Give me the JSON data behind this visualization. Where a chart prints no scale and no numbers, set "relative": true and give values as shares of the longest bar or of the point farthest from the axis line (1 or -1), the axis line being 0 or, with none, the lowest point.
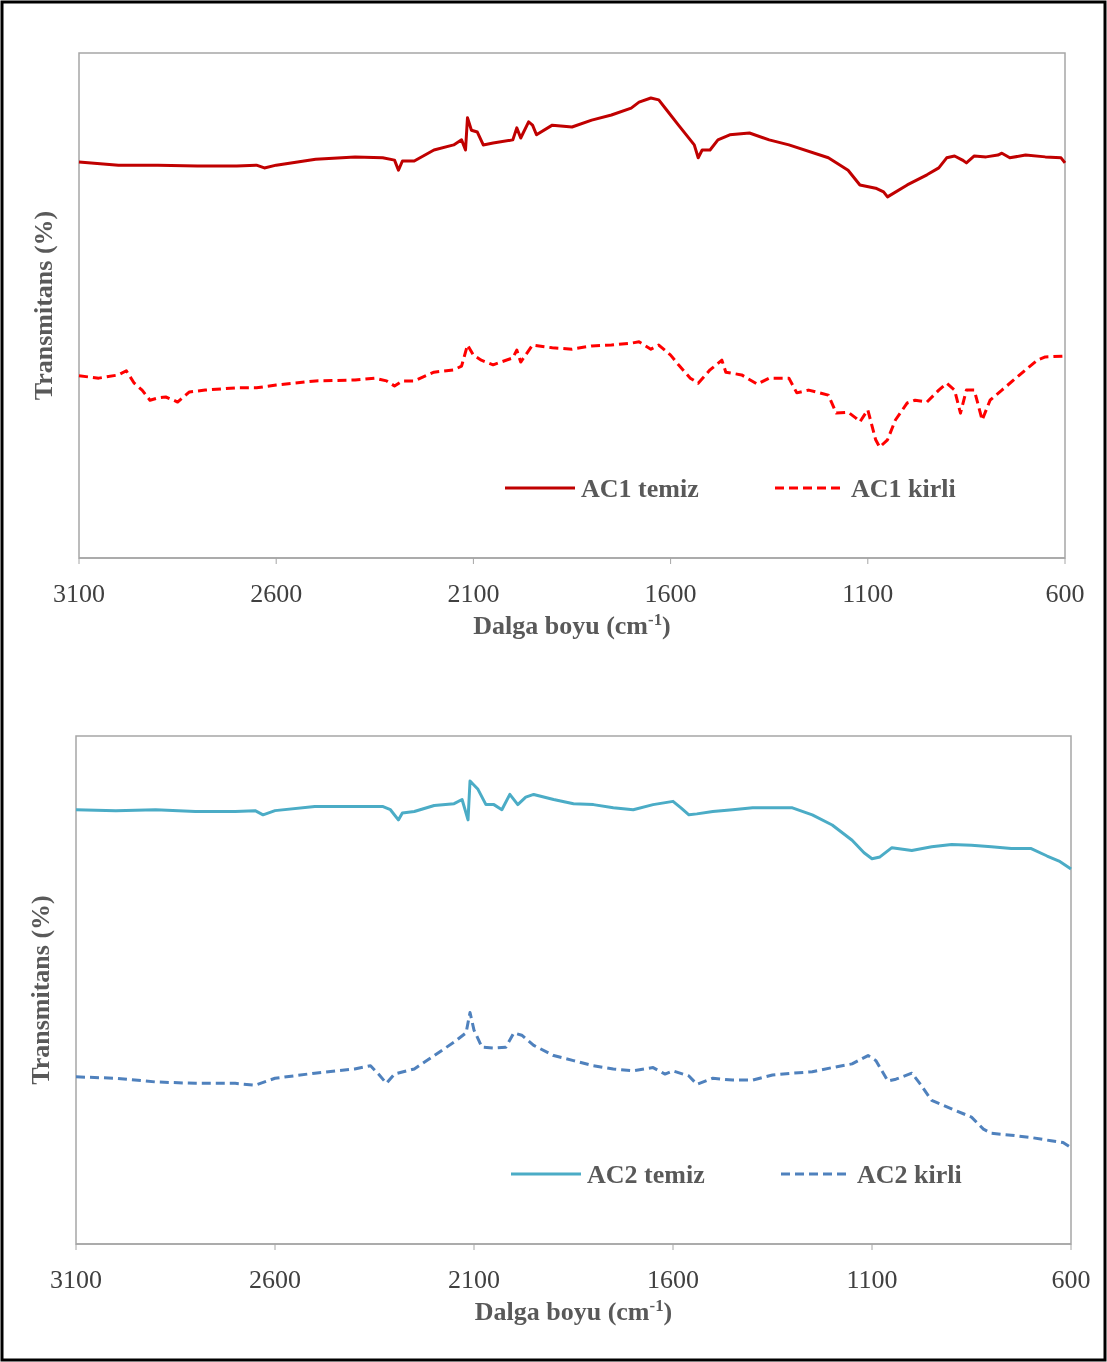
{
  "chart_data": [
    {
      "type": "line",
      "relative": true,
      "xlabel": "Dalga boyu (cm$^{-1}$)",
      "ylabel": "Transmitans (%)",
      "xlim": [
        3100,
        600
      ],
      "xticks": [
        3100,
        2600,
        2100,
        1600,
        1100,
        600
      ],
      "legend": "bottom right",
      "grid": false,
      "series": [
        {
          "name": "AC1 temiz",
          "color": "#c00000",
          "line_style": "solid",
          "x": [
            3100,
            3000,
            2900,
            2800,
            2700,
            2650,
            2630,
            2600,
            2500,
            2400,
            2330,
            2300,
            2290,
            2280,
            2250,
            2200,
            2150,
            2130,
            2120,
            2115,
            2105,
            2090,
            2075,
            2050,
            2000,
            1990,
            1980,
            1960,
            1950,
            1940,
            1900,
            1850,
            1800,
            1750,
            1700,
            1680,
            1650,
            1630,
            1610,
            1580,
            1540,
            1530,
            1520,
            1500,
            1480,
            1450,
            1400,
            1350,
            1300,
            1200,
            1150,
            1120,
            1080,
            1060,
            1050,
            1000,
            950,
            920,
            900,
            880,
            860,
            850,
            830,
            800,
            770,
            760,
            740,
            700,
            650,
            610,
            600
          ],
          "values": [
            0.861,
            0.854,
            0.854,
            0.852,
            0.852,
            0.854,
            0.848,
            0.854,
            0.867,
            0.872,
            0.87,
            0.865,
            0.843,
            0.863,
            0.863,
            0.887,
            0.898,
            0.909,
            0.887,
            0.957,
            0.93,
            0.926,
            0.898,
            0.902,
            0.909,
            0.935,
            0.913,
            0.948,
            0.941,
            0.92,
            0.941,
            0.937,
            0.952,
            0.963,
            0.978,
            0.991,
            1.0,
            0.996,
            0.974,
            0.941,
            0.898,
            0.87,
            0.887,
            0.887,
            0.909,
            0.92,
            0.924,
            0.909,
            0.898,
            0.87,
            0.843,
            0.811,
            0.804,
            0.796,
            0.785,
            0.811,
            0.833,
            0.848,
            0.87,
            0.874,
            0.865,
            0.859,
            0.874,
            0.872,
            0.876,
            0.88,
            0.87,
            0.876,
            0.872,
            0.87,
            0.859
          ]
        },
        {
          "name": "AC1 kirli",
          "color": "#ff0000",
          "line_style": "dashed",
          "x": [
            3100,
            3050,
            3000,
            2980,
            2960,
            2940,
            2920,
            2900,
            2880,
            2860,
            2850,
            2820,
            2780,
            2700,
            2650,
            2600,
            2500,
            2400,
            2350,
            2320,
            2300,
            2280,
            2250,
            2200,
            2150,
            2130,
            2115,
            2100,
            2080,
            2050,
            2000,
            1990,
            1980,
            1950,
            1900,
            1850,
            1800,
            1750,
            1700,
            1680,
            1650,
            1630,
            1600,
            1580,
            1550,
            1530,
            1500,
            1470,
            1460,
            1420,
            1380,
            1350,
            1300,
            1280,
            1250,
            1200,
            1180,
            1150,
            1130,
            1120,
            1100,
            1080,
            1070,
            1050,
            1030,
            1000,
            980,
            950,
            920,
            900,
            880,
            865,
            850,
            830,
            810,
            790,
            760,
            730,
            700,
            670,
            650,
            600
          ],
          "values": [
            0.396,
            0.391,
            0.398,
            0.407,
            0.38,
            0.365,
            0.343,
            0.348,
            0.35,
            0.343,
            0.339,
            0.361,
            0.365,
            0.37,
            0.37,
            0.376,
            0.385,
            0.387,
            0.391,
            0.385,
            0.374,
            0.385,
            0.385,
            0.404,
            0.409,
            0.417,
            0.463,
            0.441,
            0.43,
            0.42,
            0.435,
            0.452,
            0.426,
            0.463,
            0.457,
            0.454,
            0.461,
            0.463,
            0.467,
            0.47,
            0.454,
            0.463,
            0.441,
            0.42,
            0.391,
            0.38,
            0.409,
            0.43,
            0.404,
            0.398,
            0.378,
            0.391,
            0.391,
            0.359,
            0.365,
            0.354,
            0.315,
            0.317,
            0.304,
            0.296,
            0.322,
            0.257,
            0.241,
            0.257,
            0.3,
            0.337,
            0.343,
            0.339,
            0.365,
            0.38,
            0.365,
            0.315,
            0.365,
            0.365,
            0.3,
            0.343,
            0.365,
            0.387,
            0.409,
            0.43,
            0.437,
            0.439
          ]
        }
      ]
    },
    {
      "type": "line",
      "relative": true,
      "xlabel": "Dalga boyu (cm$^{-1}$)",
      "ylabel": "Transmitans (%)",
      "xlim": [
        3100,
        600
      ],
      "xticks": [
        3100,
        2600,
        2100,
        1600,
        1100,
        600
      ],
      "legend": "bottom right",
      "grid": false,
      "series": [
        {
          "name": "AC2 temiz",
          "color": "#4bacc6",
          "line_style": "solid",
          "x": [
            3100,
            3000,
            2900,
            2800,
            2700,
            2650,
            2630,
            2600,
            2500,
            2400,
            2330,
            2310,
            2290,
            2280,
            2250,
            2200,
            2150,
            2130,
            2115,
            2110,
            2090,
            2070,
            2050,
            2030,
            2010,
            1990,
            1970,
            1950,
            1900,
            1850,
            1800,
            1750,
            1700,
            1650,
            1600,
            1580,
            1560,
            1540,
            1500,
            1450,
            1400,
            1350,
            1300,
            1250,
            1200,
            1150,
            1120,
            1100,
            1080,
            1050,
            1000,
            950,
            900,
            850,
            800,
            750,
            700,
            660,
            630,
            600
          ],
          "values": [
            0.938,
            0.936,
            0.938,
            0.934,
            0.934,
            0.936,
            0.927,
            0.936,
            0.945,
            0.945,
            0.945,
            0.938,
            0.916,
            0.931,
            0.934,
            0.947,
            0.951,
            0.96,
            0.916,
            1.0,
            0.982,
            0.949,
            0.949,
            0.938,
            0.971,
            0.949,
            0.965,
            0.971,
            0.96,
            0.951,
            0.949,
            0.942,
            0.938,
            0.949,
            0.956,
            0.942,
            0.927,
            0.929,
            0.934,
            0.938,
            0.942,
            0.942,
            0.942,
            0.927,
            0.905,
            0.872,
            0.845,
            0.832,
            0.836,
            0.856,
            0.85,
            0.858,
            0.863,
            0.861,
            0.858,
            0.854,
            0.854,
            0.838,
            0.827,
            0.81
          ]
        },
        {
          "name": "AC2 kirli",
          "color": "#4f81bd",
          "line_style": "dashed",
          "x": [
            3100,
            3000,
            2900,
            2800,
            2700,
            2650,
            2600,
            2500,
            2400,
            2360,
            2340,
            2320,
            2300,
            2250,
            2200,
            2150,
            2120,
            2110,
            2100,
            2080,
            2050,
            2020,
            2000,
            1980,
            1950,
            1900,
            1850,
            1800,
            1750,
            1700,
            1650,
            1620,
            1600,
            1560,
            1540,
            1500,
            1450,
            1400,
            1350,
            1300,
            1250,
            1200,
            1150,
            1110,
            1090,
            1060,
            1040,
            1000,
            980,
            950,
            900,
            850,
            820,
            800,
            750,
            700,
            650,
            620,
            600
          ],
          "values": [
            0.361,
            0.358,
            0.35,
            0.347,
            0.347,
            0.343,
            0.358,
            0.369,
            0.378,
            0.385,
            0.367,
            0.347,
            0.367,
            0.378,
            0.407,
            0.436,
            0.456,
            0.5,
            0.462,
            0.425,
            0.423,
            0.425,
            0.456,
            0.451,
            0.429,
            0.407,
            0.396,
            0.385,
            0.378,
            0.374,
            0.381,
            0.367,
            0.374,
            0.363,
            0.345,
            0.358,
            0.354,
            0.354,
            0.365,
            0.369,
            0.372,
            0.381,
            0.389,
            0.407,
            0.396,
            0.352,
            0.356,
            0.369,
            0.347,
            0.31,
            0.292,
            0.274,
            0.248,
            0.239,
            0.235,
            0.23,
            0.223,
            0.219,
            0.208
          ]
        }
      ]
    }
  ]
}
